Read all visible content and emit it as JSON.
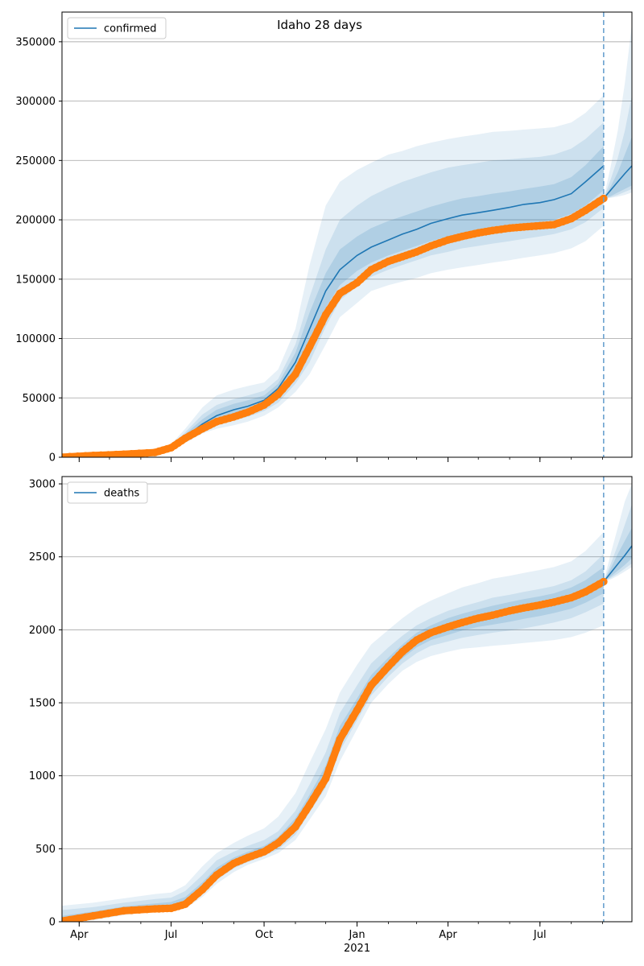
{
  "title": "Idaho 28 days",
  "colors": {
    "line": "#1f77b4",
    "observed": "#ff7f0e",
    "band": "#1f77b4",
    "grid": "#b0b0b0",
    "vline": "#6aa2cf"
  },
  "chart_data": [
    {
      "type": "line",
      "title": "Idaho 28 days",
      "legend": [
        "confirmed"
      ],
      "legend_position": "top-left",
      "grid": "horizontal",
      "x_start": "2020-03-15",
      "x_end": "2021-09-30",
      "xticks_major": [
        {
          "date": "2020-04-01",
          "label": "Apr"
        },
        {
          "date": "2020-07-01",
          "label": "Jul"
        },
        {
          "date": "2020-10-01",
          "label": "Oct"
        },
        {
          "date": "2021-01-01",
          "label": "Jan",
          "sublabel": "2021"
        },
        {
          "date": "2021-04-01",
          "label": "Apr"
        },
        {
          "date": "2021-07-01",
          "label": "Jul"
        }
      ],
      "ylim": [
        0,
        375000
      ],
      "yticks": [
        0,
        50000,
        100000,
        150000,
        200000,
        250000,
        300000,
        350000
      ],
      "forecast_date": "2021-09-02",
      "series": [
        {
          "name": "confirmed",
          "role": "fit",
          "x": [
            "2020-03-15",
            "2020-04-15",
            "2020-05-15",
            "2020-06-15",
            "2020-07-01",
            "2020-07-15",
            "2020-08-01",
            "2020-08-15",
            "2020-09-01",
            "2020-09-15",
            "2020-10-01",
            "2020-10-15",
            "2020-11-01",
            "2020-11-15",
            "2020-12-01",
            "2020-12-15",
            "2021-01-01",
            "2021-01-15",
            "2021-02-01",
            "2021-02-15",
            "2021-03-01",
            "2021-03-15",
            "2021-04-01",
            "2021-04-15",
            "2021-05-01",
            "2021-05-15",
            "2021-06-01",
            "2021-06-15",
            "2021-07-01",
            "2021-07-15",
            "2021-08-01",
            "2021-08-15",
            "2021-09-02"
          ],
          "y": [
            100,
            1000,
            2500,
            4000,
            8000,
            17000,
            28000,
            35000,
            40000,
            43000,
            48000,
            58000,
            80000,
            108000,
            140000,
            158000,
            170000,
            177000,
            183000,
            188000,
            192000,
            197000,
            201000,
            204000,
            206000,
            208000,
            210500,
            213000,
            214500,
            217000,
            222000,
            232000,
            245500
          ]
        },
        {
          "name": "confirmed-forecast",
          "role": "forecast",
          "x": [
            "2021-09-02",
            "2021-09-09",
            "2021-09-16",
            "2021-09-23",
            "2021-09-30"
          ],
          "y": [
            218000,
            225000,
            232000,
            239000,
            245500
          ],
          "bands": [
            {
              "lo": [
                218000,
                218500,
                219500,
                221000,
                223000
              ],
              "hi": [
                218000,
                245000,
                275000,
                315000,
                365000
              ]
            },
            {
              "lo": [
                218000,
                219000,
                221000,
                223500,
                226000
              ],
              "hi": [
                218000,
                234000,
                252000,
                275000,
                305000
              ]
            },
            {
              "lo": [
                218000,
                220000,
                223000,
                226000,
                229000
              ],
              "hi": [
                218000,
                228000,
                240000,
                255000,
                270000
              ]
            }
          ]
        },
        {
          "name": "observed",
          "role": "observed",
          "x": [
            "2020-03-15",
            "2020-04-15",
            "2020-05-15",
            "2020-06-15",
            "2020-07-01",
            "2020-07-15",
            "2020-08-01",
            "2020-08-15",
            "2020-09-01",
            "2020-09-15",
            "2020-10-01",
            "2020-10-15",
            "2020-11-01",
            "2020-11-15",
            "2020-12-01",
            "2020-12-15",
            "2021-01-01",
            "2021-01-15",
            "2021-02-01",
            "2021-02-15",
            "2021-03-01",
            "2021-03-15",
            "2021-04-01",
            "2021-04-15",
            "2021-05-01",
            "2021-05-15",
            "2021-06-01",
            "2021-06-15",
            "2021-07-01",
            "2021-07-15",
            "2021-08-01",
            "2021-08-15",
            "2021-09-02"
          ],
          "y": [
            100,
            1500,
            2500,
            4000,
            8000,
            16000,
            24000,
            30000,
            34000,
            38000,
            44000,
            53000,
            70000,
            93000,
            120000,
            138000,
            147000,
            158000,
            165000,
            169000,
            173000,
            178000,
            183000,
            186000,
            189000,
            191000,
            193000,
            194000,
            195000,
            196000,
            201000,
            208000,
            218000
          ]
        }
      ],
      "bands": [
        {
          "level": "outer",
          "lo": [
            0,
            500,
            1500,
            2500,
            6000,
            12000,
            20000,
            24000,
            27000,
            30000,
            35000,
            42000,
            55000,
            70000,
            95000,
            118000,
            130000,
            140000,
            145000,
            148000,
            151000,
            155000,
            158000,
            160000,
            162000,
            164000,
            166000,
            168000,
            170000,
            172000,
            176000,
            182000,
            195000
          ],
          "hi": [
            500,
            3000,
            4500,
            6000,
            11000,
            24000,
            42000,
            52000,
            57000,
            60000,
            63000,
            74000,
            108000,
            162000,
            212000,
            232000,
            242000,
            248000,
            255000,
            258000,
            262000,
            265000,
            268000,
            270000,
            272000,
            274000,
            275000,
            276000,
            277000,
            278000,
            282000,
            290000,
            305000
          ]
        },
        {
          "level": "middle",
          "lo": [
            0,
            700,
            1800,
            3000,
            6800,
            14000,
            23000,
            27000,
            31000,
            34000,
            39000,
            46000,
            62000,
            80000,
            110000,
            132000,
            144000,
            152000,
            158000,
            162000,
            166000,
            170000,
            173000,
            176000,
            178000,
            180000,
            182000,
            184000,
            186000,
            188000,
            192000,
            198000,
            210000
          ],
          "hi": [
            300,
            2200,
            3500,
            5000,
            9800,
            21000,
            36000,
            44000,
            49000,
            52000,
            56000,
            66000,
            95000,
            135000,
            175000,
            200000,
            212000,
            220000,
            227000,
            232000,
            236000,
            240000,
            244000,
            246000,
            248000,
            250000,
            251000,
            252000,
            253000,
            255000,
            260000,
            268000,
            282000
          ]
        },
        {
          "level": "inner",
          "lo": [
            50,
            800,
            2000,
            3300,
            7200,
            15000,
            25000,
            30000,
            35000,
            38000,
            43000,
            51000,
            70000,
            95000,
            126000,
            145000,
            157000,
            164000,
            170000,
            174000,
            178000,
            182000,
            186000,
            188000,
            190000,
            192000,
            194000,
            196000,
            198000,
            200000,
            205000,
            212000,
            225000
          ],
          "hi": [
            200,
            1600,
            3000,
            4500,
            9000,
            19500,
            32000,
            40000,
            45000,
            48000,
            52000,
            62000,
            88000,
            122000,
            155000,
            175000,
            186000,
            193000,
            199000,
            203000,
            207000,
            211000,
            215000,
            218000,
            220000,
            222000,
            224000,
            226000,
            228000,
            230000,
            236000,
            246000,
            262000
          ]
        }
      ]
    },
    {
      "type": "line",
      "legend": [
        "deaths"
      ],
      "legend_position": "top-left",
      "grid": "horizontal",
      "x_start": "2020-03-15",
      "x_end": "2021-09-30",
      "xticks_major": [
        {
          "date": "2020-04-01",
          "label": "Apr"
        },
        {
          "date": "2020-07-01",
          "label": "Jul"
        },
        {
          "date": "2020-10-01",
          "label": "Oct"
        },
        {
          "date": "2021-01-01",
          "label": "Jan",
          "sublabel": "2021"
        },
        {
          "date": "2021-04-01",
          "label": "Apr"
        },
        {
          "date": "2021-07-01",
          "label": "Jul"
        }
      ],
      "ylim": [
        0,
        3050
      ],
      "yticks": [
        0,
        500,
        1000,
        1500,
        2000,
        2500,
        3000
      ],
      "forecast_date": "2021-09-02",
      "series": [
        {
          "name": "deaths",
          "role": "fit",
          "x": [
            "2020-03-15",
            "2020-04-15",
            "2020-05-15",
            "2020-06-15",
            "2020-07-01",
            "2020-07-15",
            "2020-08-01",
            "2020-08-15",
            "2020-09-01",
            "2020-09-15",
            "2020-10-01",
            "2020-10-15",
            "2020-11-01",
            "2020-11-15",
            "2020-12-01",
            "2020-12-15",
            "2021-01-01",
            "2021-01-15",
            "2021-02-01",
            "2021-02-15",
            "2021-03-01",
            "2021-03-15",
            "2021-04-01",
            "2021-04-15",
            "2021-05-01",
            "2021-05-15",
            "2021-06-01",
            "2021-06-15",
            "2021-07-01",
            "2021-07-15",
            "2021-08-01",
            "2021-08-15",
            "2021-09-02"
          ],
          "y": [
            0,
            40,
            75,
            88,
            92,
            120,
            220,
            320,
            400,
            440,
            480,
            540,
            650,
            800,
            980,
            1250,
            1450,
            1620,
            1750,
            1850,
            1930,
            1980,
            2020,
            2050,
            2080,
            2100,
            2130,
            2150,
            2170,
            2190,
            2220,
            2260,
            2330
          ]
        },
        {
          "name": "deaths-forecast",
          "role": "forecast",
          "x": [
            "2021-09-02",
            "2021-09-09",
            "2021-09-16",
            "2021-09-23",
            "2021-09-30"
          ],
          "y": [
            2330,
            2390,
            2450,
            2510,
            2575
          ],
          "bands": [
            {
              "lo": [
                2330,
                2345,
                2370,
                2400,
                2430
              ],
              "hi": [
                2330,
                2520,
                2700,
                2880,
                3000
              ]
            },
            {
              "lo": [
                2330,
                2355,
                2385,
                2420,
                2455
              ],
              "hi": [
                2330,
                2450,
                2580,
                2720,
                2860
              ]
            },
            {
              "lo": [
                2330,
                2365,
                2405,
                2445,
                2490
              ],
              "hi": [
                2330,
                2420,
                2520,
                2610,
                2700
              ]
            }
          ]
        },
        {
          "name": "observed",
          "role": "observed",
          "x": [
            "2020-03-15",
            "2020-04-15",
            "2020-05-15",
            "2020-06-15",
            "2020-07-01",
            "2020-07-15",
            "2020-08-01",
            "2020-08-15",
            "2020-09-01",
            "2020-09-15",
            "2020-10-01",
            "2020-10-15",
            "2020-11-01",
            "2020-11-15",
            "2020-12-01",
            "2020-12-15",
            "2021-01-01",
            "2021-01-15",
            "2021-02-01",
            "2021-02-15",
            "2021-03-01",
            "2021-03-15",
            "2021-04-01",
            "2021-04-15",
            "2021-05-01",
            "2021-05-15",
            "2021-06-01",
            "2021-06-15",
            "2021-07-01",
            "2021-07-15",
            "2021-08-01",
            "2021-08-15",
            "2021-09-02"
          ],
          "y": [
            5,
            40,
            75,
            88,
            92,
            120,
            220,
            320,
            400,
            440,
            480,
            540,
            650,
            800,
            980,
            1250,
            1450,
            1620,
            1750,
            1850,
            1930,
            1980,
            2020,
            2050,
            2080,
            2100,
            2130,
            2150,
            2170,
            2190,
            2220,
            2260,
            2330
          ]
        }
      ],
      "bands": [
        {
          "level": "outer",
          "lo": [
            0,
            10,
            45,
            70,
            75,
            90,
            170,
            260,
            340,
            390,
            430,
            470,
            560,
            700,
            860,
            1100,
            1320,
            1500,
            1630,
            1720,
            1780,
            1820,
            1850,
            1870,
            1880,
            1890,
            1900,
            1910,
            1920,
            1930,
            1950,
            1980,
            2030
          ],
          "hi": [
            110,
            130,
            160,
            190,
            200,
            250,
            380,
            470,
            540,
            590,
            640,
            720,
            880,
            1090,
            1320,
            1570,
            1760,
            1900,
            2000,
            2080,
            2150,
            2200,
            2250,
            2290,
            2320,
            2350,
            2370,
            2390,
            2410,
            2430,
            2470,
            2540,
            2670
          ]
        },
        {
          "level": "middle",
          "lo": [
            0,
            20,
            55,
            78,
            82,
            100,
            190,
            285,
            365,
            410,
            450,
            495,
            595,
            750,
            920,
            1170,
            1380,
            1550,
            1680,
            1770,
            1840,
            1890,
            1920,
            1945,
            1965,
            1980,
            1995,
            2010,
            2030,
            2050,
            2080,
            2120,
            2180
          ],
          "hi": [
            80,
            100,
            130,
            155,
            165,
            210,
            320,
            420,
            480,
            520,
            560,
            620,
            760,
            940,
            1160,
            1430,
            1620,
            1770,
            1880,
            1960,
            2030,
            2080,
            2130,
            2160,
            2190,
            2220,
            2240,
            2260,
            2280,
            2300,
            2340,
            2400,
            2520
          ]
        },
        {
          "level": "inner",
          "lo": [
            0,
            28,
            62,
            82,
            86,
            108,
            200,
            300,
            380,
            425,
            465,
            515,
            620,
            775,
            950,
            1210,
            1410,
            1580,
            1710,
            1805,
            1880,
            1930,
            1965,
            1995,
            2020,
            2035,
            2055,
            2075,
            2095,
            2115,
            2145,
            2185,
            2250
          ],
          "hi": [
            40,
            70,
            105,
            125,
            135,
            170,
            270,
            370,
            440,
            480,
            520,
            580,
            710,
            870,
            1070,
            1340,
            1530,
            1690,
            1810,
            1900,
            1980,
            2030,
            2080,
            2110,
            2140,
            2165,
            2190,
            2210,
            2230,
            2250,
            2290,
            2340,
            2430
          ]
        }
      ]
    }
  ]
}
